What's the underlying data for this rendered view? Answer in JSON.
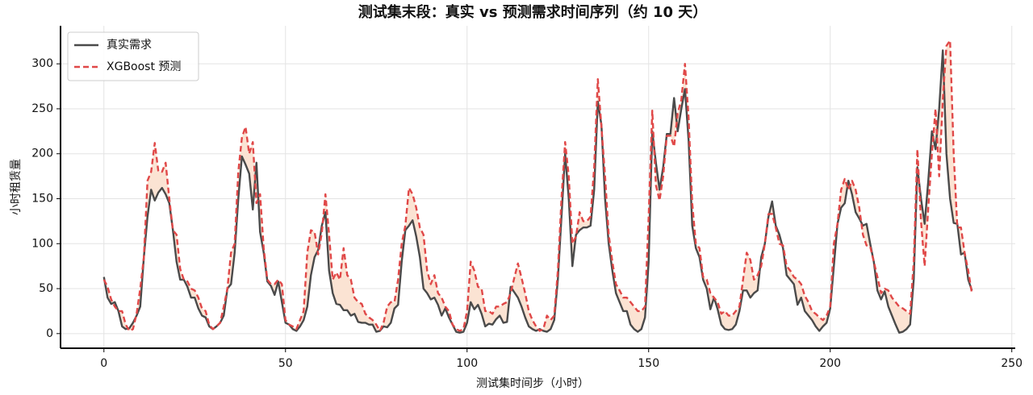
{
  "chart_data": {
    "type": "line",
    "title": "测试集末段：真实 vs 预测需求时间序列（约 10 天）",
    "x_label": "测试集时间步（小时）",
    "y_label": "小时租赁量",
    "x": [
      0,
      1,
      2,
      3,
      4,
      5,
      6,
      7,
      8,
      9,
      10,
      11,
      12,
      13,
      14,
      15,
      16,
      17,
      18,
      19,
      20,
      21,
      22,
      23,
      24,
      25,
      26,
      27,
      28,
      29,
      30,
      31,
      32,
      33,
      34,
      35,
      36,
      37,
      38,
      39,
      40,
      41,
      42,
      43,
      44,
      45,
      46,
      47,
      48,
      49,
      50,
      51,
      52,
      53,
      54,
      55,
      56,
      57,
      58,
      59,
      60,
      61,
      62,
      63,
      64,
      65,
      66,
      67,
      68,
      69,
      70,
      71,
      72,
      73,
      74,
      75,
      76,
      77,
      78,
      79,
      80,
      81,
      82,
      83,
      84,
      85,
      86,
      87,
      88,
      89,
      90,
      91,
      92,
      93,
      94,
      95,
      96,
      97,
      98,
      99,
      100,
      101,
      102,
      103,
      104,
      105,
      106,
      107,
      108,
      109,
      110,
      111,
      112,
      113,
      114,
      115,
      116,
      117,
      118,
      119,
      120,
      121,
      122,
      123,
      124,
      125,
      126,
      127,
      128,
      129,
      130,
      131,
      132,
      133,
      134,
      135,
      136,
      137,
      138,
      139,
      140,
      141,
      142,
      143,
      144,
      145,
      146,
      147,
      148,
      149,
      150,
      151,
      152,
      153,
      154,
      155,
      156,
      157,
      158,
      159,
      160,
      161,
      162,
      163,
      164,
      165,
      166,
      167,
      168,
      169,
      170,
      171,
      172,
      173,
      174,
      175,
      176,
      177,
      178,
      179,
      180,
      181,
      182,
      183,
      184,
      185,
      186,
      187,
      188,
      189,
      190,
      191,
      192,
      193,
      194,
      195,
      196,
      197,
      198,
      199,
      200,
      201,
      202,
      203,
      204,
      205,
      206,
      207,
      208,
      209,
      210,
      211,
      212,
      213,
      214,
      215,
      216,
      217,
      218,
      219,
      220,
      221,
      222,
      223,
      224,
      225,
      226,
      227,
      228,
      229,
      230,
      231,
      232,
      233,
      234,
      235,
      236,
      237,
      238,
      239
    ],
    "series": [
      {
        "name": "真实需求",
        "color": "#4a4a4a",
        "dash": false,
        "values": [
          63,
          40,
          33,
          35,
          25,
          8,
          5,
          6,
          12,
          20,
          30,
          85,
          130,
          160,
          148,
          157,
          162,
          155,
          145,
          115,
          80,
          60,
          60,
          52,
          40,
          40,
          28,
          20,
          18,
          8,
          5,
          8,
          12,
          20,
          50,
          55,
          90,
          150,
          197,
          188,
          178,
          138,
          190,
          113,
          90,
          58,
          53,
          43,
          58,
          35,
          12,
          10,
          5,
          3,
          8,
          15,
          30,
          65,
          85,
          93,
          120,
          135,
          70,
          45,
          33,
          32,
          26,
          26,
          20,
          22,
          13,
          12,
          12,
          10,
          10,
          2,
          3,
          8,
          7,
          12,
          28,
          32,
          80,
          115,
          120,
          126,
          108,
          85,
          50,
          45,
          38,
          40,
          32,
          20,
          28,
          18,
          10,
          2,
          1,
          2,
          12,
          35,
          27,
          32,
          22,
          8,
          11,
          10,
          16,
          20,
          12,
          13,
          52,
          46,
          40,
          30,
          18,
          8,
          5,
          3,
          5,
          3,
          2,
          5,
          15,
          60,
          130,
          200,
          150,
          75,
          110,
          115,
          118,
          118,
          120,
          160,
          258,
          232,
          150,
          100,
          70,
          45,
          35,
          25,
          25,
          10,
          5,
          2,
          5,
          18,
          80,
          225,
          190,
          160,
          185,
          222,
          222,
          262,
          225,
          250,
          272,
          215,
          120,
          95,
          85,
          60,
          50,
          27,
          40,
          27,
          10,
          5,
          4,
          5,
          10,
          25,
          48,
          48,
          40,
          45,
          48,
          85,
          100,
          130,
          147,
          120,
          110,
          95,
          65,
          60,
          55,
          32,
          40,
          25,
          20,
          15,
          8,
          3,
          8,
          12,
          28,
          75,
          122,
          140,
          145,
          170,
          155,
          135,
          128,
          120,
          122,
          100,
          80,
          48,
          38,
          47,
          30,
          20,
          10,
          1,
          2,
          5,
          10,
          60,
          185,
          150,
          122,
          170,
          225,
          205,
          250,
          315,
          200,
          150,
          123,
          122,
          88,
          90,
          60,
          48
        ]
      },
      {
        "name": "XGBoost 预测",
        "color": "#e04848",
        "dash": true,
        "values": [
          60,
          52,
          38,
          30,
          25,
          25,
          10,
          3,
          5,
          22,
          50,
          85,
          170,
          180,
          212,
          180,
          180,
          190,
          150,
          115,
          110,
          72,
          60,
          58,
          50,
          48,
          40,
          28,
          25,
          10,
          5,
          8,
          12,
          30,
          50,
          90,
          100,
          180,
          218,
          230,
          200,
          213,
          145,
          155,
          95,
          60,
          55,
          55,
          60,
          55,
          15,
          10,
          8,
          5,
          15,
          25,
          90,
          115,
          113,
          88,
          112,
          155,
          110,
          60,
          68,
          60,
          95,
          65,
          60,
          40,
          35,
          33,
          22,
          18,
          15,
          10,
          3,
          12,
          30,
          35,
          35,
          60,
          100,
          120,
          162,
          155,
          140,
          118,
          110,
          70,
          55,
          65,
          45,
          40,
          30,
          25,
          10,
          5,
          3,
          5,
          25,
          80,
          70,
          52,
          50,
          25,
          25,
          22,
          30,
          30,
          33,
          35,
          45,
          62,
          78,
          62,
          45,
          25,
          15,
          8,
          3,
          5,
          20,
          15,
          20,
          70,
          150,
          213,
          175,
          100,
          108,
          135,
          125,
          125,
          130,
          185,
          283,
          230,
          175,
          110,
          80,
          55,
          48,
          40,
          40,
          35,
          30,
          25,
          25,
          30,
          130,
          248,
          165,
          148,
          175,
          220,
          220,
          208,
          245,
          260,
          300,
          240,
          145,
          100,
          95,
          63,
          60,
          45,
          40,
          35,
          22,
          25,
          20,
          20,
          25,
          30,
          60,
          90,
          82,
          60,
          65,
          75,
          100,
          133,
          133,
          118,
          100,
          98,
          75,
          70,
          63,
          60,
          55,
          42,
          35,
          25,
          22,
          18,
          15,
          20,
          30,
          100,
          122,
          160,
          172,
          160,
          170,
          160,
          140,
          110,
          98,
          97,
          80,
          63,
          45,
          50,
          48,
          40,
          35,
          30,
          28,
          25,
          22,
          80,
          205,
          125,
          75,
          140,
          200,
          250,
          175,
          260,
          320,
          326,
          200,
          118,
          118,
          90,
          70,
          45
        ]
      }
    ],
    "fill_color": "#fbe3d3",
    "xlim": [
      -11.95,
      250.95
    ],
    "ylim": [
      -16.3,
      342.3
    ],
    "xticks": [
      0,
      50,
      100,
      150,
      200,
      250
    ],
    "yticks": [
      0,
      50,
      100,
      150,
      200,
      250,
      300
    ],
    "grid": true,
    "legend": "upper-left"
  }
}
